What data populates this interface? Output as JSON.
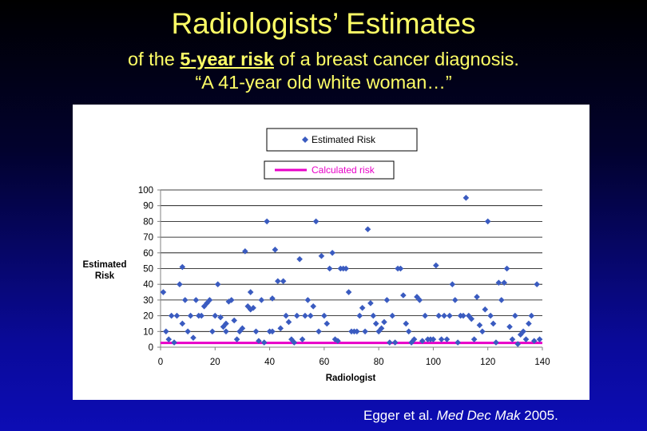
{
  "title": "Radiologists’ Estimates",
  "subtitle": {
    "pre": "of the ",
    "emph": "5-year risk",
    "post": " of a breast cancer diagnosis.",
    "line2": "“A 41-year old white woman…”"
  },
  "citation": {
    "pre": "Egger et al. ",
    "journal": "Med Dec Mak",
    "post": " 2005."
  },
  "colors": {
    "marker": "#3a5bc0",
    "calculated_line": "#e800c8",
    "title_text": "#ffff66"
  },
  "chart_data": {
    "type": "scatter",
    "xlabel": "Radiologist",
    "ylabel": "Estimated Risk",
    "xlim": [
      0,
      140
    ],
    "ylim": [
      0,
      100
    ],
    "xticks": [
      "0",
      "20",
      "40",
      "60",
      "80",
      "100",
      "120",
      "140"
    ],
    "yticks": [
      "0",
      "10",
      "20",
      "30",
      "40",
      "50",
      "60",
      "70",
      "80",
      "90",
      "100"
    ],
    "grid": "horizontal",
    "legend": [
      {
        "label": "Estimated Risk",
        "marker": "diamond"
      },
      {
        "label": "Calculated risk",
        "marker": "line"
      }
    ],
    "series": [
      {
        "name": "Estimated Risk",
        "marker": "diamond",
        "x": [
          1,
          2,
          3,
          4,
          5,
          6,
          7,
          8,
          8,
          9,
          10,
          11,
          12,
          13,
          14,
          15,
          16,
          17,
          18,
          19,
          20,
          21,
          22,
          23,
          24,
          24,
          25,
          26,
          27,
          28,
          29,
          30,
          31,
          32,
          33,
          33,
          34,
          35,
          36,
          37,
          38,
          39,
          40,
          41,
          41,
          42,
          43,
          44,
          45,
          46,
          47,
          48,
          49,
          50,
          51,
          52,
          53,
          54,
          55,
          56,
          57,
          58,
          59,
          60,
          61,
          62,
          63,
          64,
          65,
          66,
          67,
          68,
          69,
          70,
          71,
          72,
          73,
          74,
          75,
          76,
          77,
          78,
          79,
          80,
          81,
          82,
          83,
          84,
          85,
          86,
          87,
          88,
          89,
          90,
          91,
          92,
          93,
          94,
          95,
          96,
          97,
          98,
          99,
          100,
          101,
          102,
          103,
          104,
          105,
          106,
          107,
          108,
          109,
          110,
          111,
          112,
          113,
          114,
          115,
          116,
          117,
          118,
          119,
          120,
          121,
          122,
          123,
          124,
          125,
          126,
          127,
          128,
          129,
          130,
          131,
          132,
          133,
          134,
          135,
          136,
          137,
          138,
          139
        ],
        "y": [
          35,
          10,
          5,
          20,
          3,
          20,
          40,
          51,
          15,
          30,
          10,
          20,
          6,
          30,
          20,
          20,
          26,
          28,
          30,
          10,
          20,
          40,
          19,
          13,
          10,
          15,
          29,
          30,
          17,
          5,
          10,
          12,
          61,
          26,
          35,
          24,
          25,
          10,
          4,
          30,
          3,
          80,
          10,
          10,
          31,
          62,
          42,
          12,
          42,
          20,
          16,
          5,
          3,
          20,
          56,
          5,
          20,
          30,
          20,
          26,
          80,
          10,
          58,
          20,
          15,
          50,
          60,
          5,
          4,
          50,
          50,
          50,
          35,
          10,
          10,
          10,
          20,
          25,
          10,
          75,
          28,
          20,
          15,
          10,
          12,
          16,
          30,
          3,
          20,
          3,
          50,
          50,
          33,
          15,
          10,
          3,
          5,
          32,
          30,
          4,
          20,
          5,
          5,
          5,
          52,
          20,
          5,
          20,
          5,
          20,
          40,
          30,
          3,
          20,
          20,
          95,
          20,
          18,
          5,
          32,
          14,
          10,
          24,
          80,
          20,
          15,
          3,
          41,
          30,
          41,
          50,
          13,
          5,
          20,
          2,
          8,
          10,
          5,
          15,
          20,
          4,
          40,
          5
        ]
      },
      {
        "name": "Calculated risk",
        "marker": "line",
        "x": [
          0,
          140
        ],
        "y": [
          2.7,
          2.7
        ]
      }
    ]
  }
}
